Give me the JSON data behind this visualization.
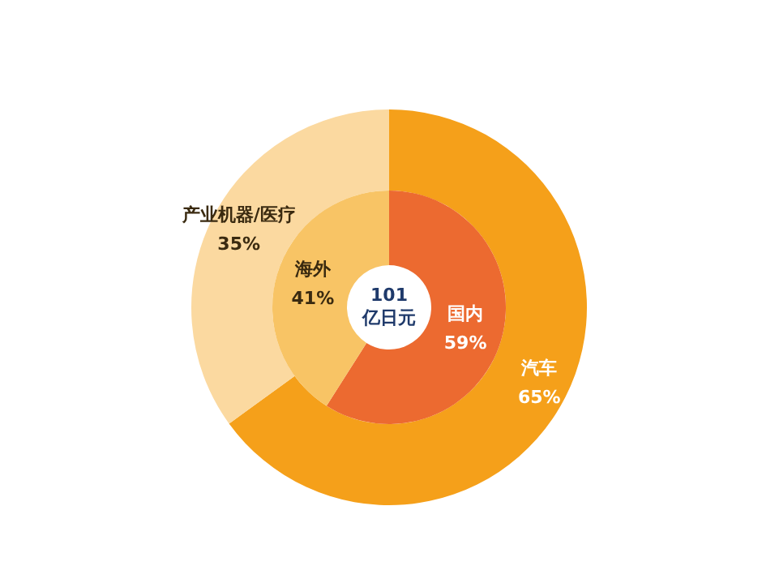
{
  "chart_data": [
    {
      "type": "donut",
      "categories": [
        "汽车",
        "产业机器/医疗"
      ],
      "values": [
        65,
        35
      ],
      "value_labels": [
        "65%",
        "35%"
      ],
      "colors": [
        "#f5a01a",
        "#fbd9a0"
      ],
      "legend": false
    },
    {
      "type": "donut",
      "categories": [
        "国内",
        "海外"
      ],
      "values": [
        59,
        41
      ],
      "value_labels": [
        "59%",
        "41%"
      ],
      "colors": [
        "#ec6a30",
        "#f8c465"
      ],
      "legend": false,
      "annotations": [
        "101 亿日元"
      ]
    }
  ]
}
